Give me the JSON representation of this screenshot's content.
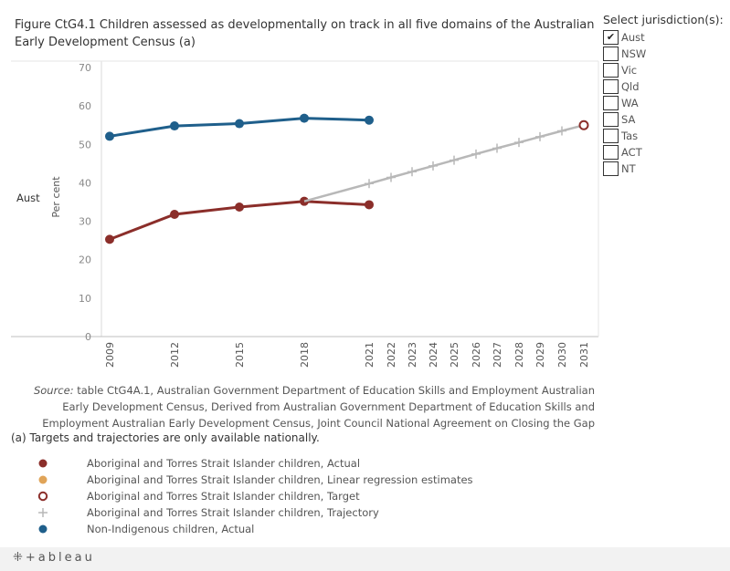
{
  "title": "Figure CtG4.1  Children assessed as developmentally on track in all five domains of the Australian Early Development Census (a)",
  "jurisdiction": {
    "title": "Select jurisdiction(s):",
    "checkmark": "✔",
    "items": [
      {
        "label": "Aust",
        "checked": true
      },
      {
        "label": "NSW",
        "checked": false
      },
      {
        "label": "Vic",
        "checked": false
      },
      {
        "label": "Qld",
        "checked": false
      },
      {
        "label": "WA",
        "checked": false
      },
      {
        "label": "SA",
        "checked": false
      },
      {
        "label": "Tas",
        "checked": false
      },
      {
        "label": "ACT",
        "checked": false
      },
      {
        "label": "NT",
        "checked": false
      }
    ]
  },
  "row_label": "Aust",
  "chart_data": {
    "type": "line",
    "ylabel": "Per cent",
    "ylim": [
      0,
      70
    ],
    "yticks": [
      0,
      10,
      20,
      30,
      40,
      50,
      60,
      70
    ],
    "x_ticks": [
      2009,
      2012,
      2015,
      2018,
      2021,
      2022,
      2023,
      2024,
      2025,
      2026,
      2027,
      2028,
      2029,
      2030,
      2031
    ],
    "series": [
      {
        "name": "Non-Indigenous children, Actual",
        "style": "line-dot",
        "color": "#1f5f8b",
        "x": [
          2009,
          2012,
          2015,
          2018,
          2021
        ],
        "values": [
          52.1,
          54.8,
          55.4,
          56.8,
          56.3
        ]
      },
      {
        "name": "Aboriginal and Torres Strait Islander children, Actual",
        "style": "line-dot",
        "color": "#8b2e2a",
        "x": [
          2009,
          2012,
          2015,
          2018,
          2021
        ],
        "values": [
          25.3,
          31.8,
          33.7,
          35.2,
          34.3
        ]
      },
      {
        "name": "Aboriginal and Torres Strait Islander children, Trajectory",
        "style": "line-cross",
        "color": "#b8b8b8",
        "x": [
          2018,
          2021,
          2022,
          2023,
          2024,
          2025,
          2026,
          2027,
          2028,
          2029,
          2030,
          2031
        ],
        "values": [
          35.2,
          39.8,
          41.4,
          42.9,
          44.4,
          45.9,
          47.5,
          49.0,
          50.5,
          52.0,
          53.5,
          55.0
        ]
      },
      {
        "name": "Aboriginal and Torres Strait Islander children, Target",
        "style": "ring",
        "color": "#8b2e2a",
        "x": [
          2031
        ],
        "values": [
          55.0
        ]
      }
    ]
  },
  "source": {
    "label": "Source:",
    "text": " table CtG4A.1, Australian Government Department of Education Skills and Employment Australian Early Development Census, Derived from Australian Government Department of Education Skills and Employment Australian Early Development Census, Joint Council National Agreement on Closing the Gap"
  },
  "footnote": "(a) Targets and trajectories are only available nationally.",
  "legend": [
    {
      "label": "Aboriginal and Torres Strait Islander children, Actual",
      "marker": "dot",
      "color": "#8b2e2a"
    },
    {
      "label": "Aboriginal and Torres Strait Islander children, Linear regression estimates",
      "marker": "dot",
      "color": "#e0a458"
    },
    {
      "label": "Aboriginal and Torres Strait Islander children, Target",
      "marker": "ring",
      "color": "#8b2e2a"
    },
    {
      "label": "Aboriginal and Torres Strait Islander children, Trajectory",
      "marker": "cross",
      "color": "#b8b8b8"
    },
    {
      "label": "Non-Indigenous children, Actual",
      "marker": "dot",
      "color": "#1f5f8b"
    }
  ],
  "footer": {
    "logo": "+ableau",
    "logo_icon": "tableau-logo-icon"
  }
}
